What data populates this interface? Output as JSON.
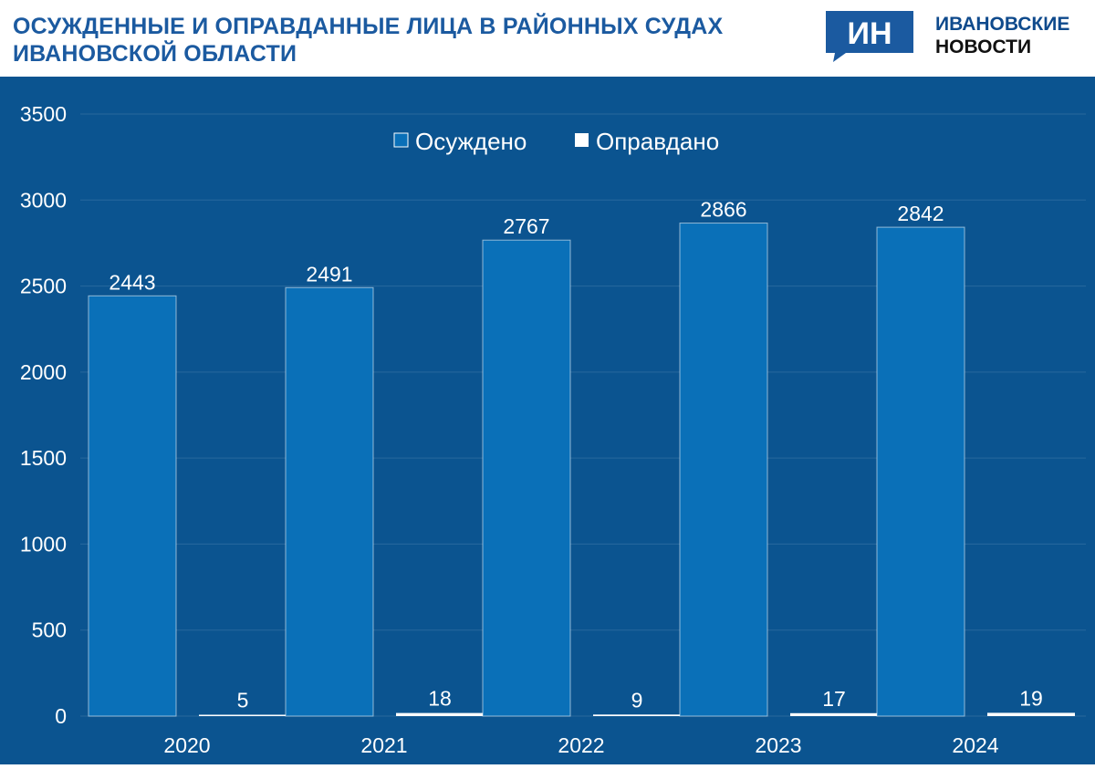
{
  "header": {
    "title": "ОСУЖДЕННЫЕ И ОПРАВДАННЫЕ ЛИЦА В РАЙОННЫХ СУДАХ ИВАНОВСКОЙ ОБЛАСТИ",
    "logo_mark": "ИН",
    "logo_line1": "ИВАНОВСКИЕ",
    "logo_line2": "НОВОСТИ"
  },
  "colors": {
    "background": "#0b5490",
    "convicted": "#0a70b8",
    "acquitted": "#ffffff",
    "title": "#1b5aa0",
    "logo": "#1b5aa0"
  },
  "chart_data": {
    "type": "bar",
    "categories": [
      "2020",
      "2021",
      "2022",
      "2023",
      "2024"
    ],
    "series": [
      {
        "name": "Осуждено",
        "values": [
          2443,
          2491,
          2767,
          2866,
          2842
        ]
      },
      {
        "name": "Оправдано",
        "values": [
          5,
          18,
          9,
          17,
          19
        ]
      }
    ],
    "ylim": [
      0,
      3500
    ],
    "yticks": [
      "0",
      "500",
      "1000",
      "1500",
      "2000",
      "2500",
      "3000",
      "3500"
    ],
    "grid": true,
    "legend": "top-center"
  }
}
